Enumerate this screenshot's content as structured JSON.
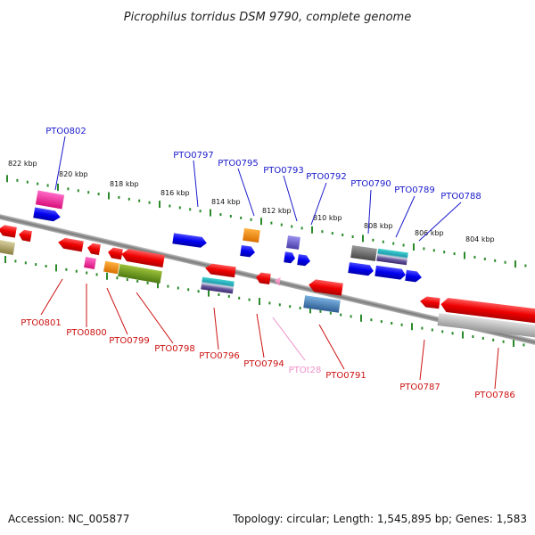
{
  "title": "Picrophilus torridus DSM 9790, complete genome",
  "footer": {
    "accession": "Accession: NC_005877",
    "summary": "Topology: circular; Length: 1,545,895 bp; Genes: 1,583"
  },
  "colors": {
    "upper_label": "#1a1acc",
    "lower_label": "#cc1111",
    "trna_label": "#f090c8",
    "tick": "#2a8a2a",
    "backbone": "#8a8a8a"
  },
  "kbp_marks": [
    {
      "label": "822 kbp"
    },
    {
      "label": "820 kbp"
    },
    {
      "label": "818 kbp"
    },
    {
      "label": "816 kbp"
    },
    {
      "label": "814 kbp"
    },
    {
      "label": "812 kbp"
    },
    {
      "label": "810 kbp"
    },
    {
      "label": "808 kbp"
    },
    {
      "label": "806 kbp"
    },
    {
      "label": "804 kbp"
    }
  ],
  "upper_gene_labels": [
    {
      "label": "PTO0802"
    },
    {
      "label": "PTO0797"
    },
    {
      "label": "PTO0795"
    },
    {
      "label": "PTO0793"
    },
    {
      "label": "PTO0792"
    },
    {
      "label": "PTO0790"
    },
    {
      "label": "PTO0789"
    },
    {
      "label": "PTO0788"
    }
  ],
  "lower_gene_labels": [
    {
      "label": "PTO0801"
    },
    {
      "label": "PTO0800"
    },
    {
      "label": "PTO0799"
    },
    {
      "label": "PTO0798"
    },
    {
      "label": "PTO0796"
    },
    {
      "label": "PTO0794"
    },
    {
      "label": "PTOt28"
    },
    {
      "label": "PTO0791"
    },
    {
      "label": "PTO0787"
    },
    {
      "label": "PTO0786"
    }
  ]
}
